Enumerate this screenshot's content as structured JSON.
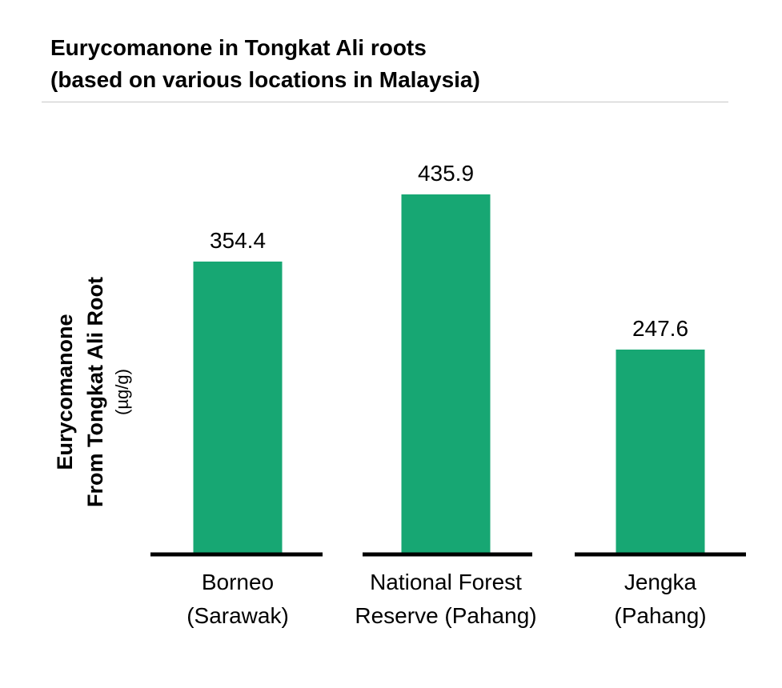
{
  "chart_data": {
    "type": "bar",
    "title_line1": "Eurycomanone in Tongkat Ali roots",
    "title_line2": "(based on various locations in Malaysia)",
    "ylabel_line1": "Eurycomanone",
    "ylabel_line2": "From Tongkat Ali Root",
    "ylabel_line3": "(µg/g)",
    "categories": [
      [
        "Borneo",
        "(Sarawak)"
      ],
      [
        "National Forest",
        "Reserve (Pahang)"
      ],
      [
        "Jengka",
        "(Pahang)"
      ]
    ],
    "values": [
      354.4,
      435.9,
      247.6
    ],
    "value_labels": [
      "354.4",
      "435.9",
      "247.6"
    ],
    "ylim": [
      0,
      500
    ],
    "grid": false,
    "legend": "none",
    "colors": {
      "bar": "#17a773",
      "axis": "#000000"
    }
  }
}
